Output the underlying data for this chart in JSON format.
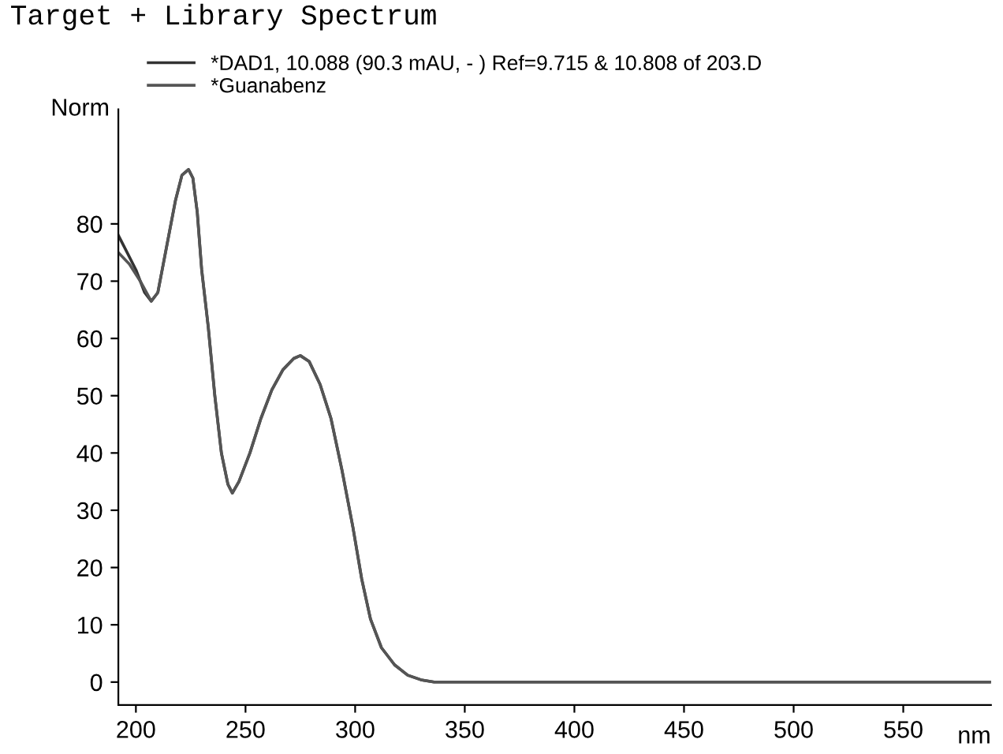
{
  "chart_data": {
    "type": "line",
    "title": "Target + Library Spectrum",
    "xlabel": "nm",
    "ylabel": "Norm",
    "xlim": [
      192,
      590
    ],
    "ylim": [
      -4,
      100
    ],
    "xticks": [
      200,
      250,
      300,
      350,
      400,
      450,
      500,
      550
    ],
    "yticks": [
      0,
      10,
      20,
      30,
      40,
      50,
      60,
      70,
      80
    ],
    "grid": false,
    "legend": "top",
    "marker": "none",
    "line_style": "solid",
    "series": [
      {
        "name": "*DAD1, 10.088 (90.3 mAU, - ) Ref=9.715 & 10.808 of 203.D",
        "color": "#333333",
        "x": [
          192,
          196,
          200,
          204,
          207,
          210,
          214,
          218,
          221,
          224,
          226,
          228,
          230,
          233,
          236,
          239,
          242,
          244,
          247,
          252,
          257,
          262,
          267,
          272,
          275,
          279,
          284,
          289,
          294,
          299,
          303,
          307,
          312,
          318,
          324,
          330,
          336,
          400,
          450,
          500,
          550,
          590
        ],
        "values": [
          78,
          75,
          72,
          68,
          66.5,
          68,
          76,
          84,
          88.5,
          89.5,
          88,
          82,
          72,
          62,
          50,
          40,
          34.5,
          33,
          35,
          40,
          46,
          51,
          54.5,
          56.5,
          57,
          56,
          52,
          46,
          37,
          27,
          18,
          11,
          6,
          3,
          1.2,
          0.4,
          0,
          0,
          0,
          0,
          0,
          0
        ]
      },
      {
        "name": "*Guanabenz",
        "color": "#555555",
        "x": [
          192,
          197,
          202,
          207,
          210,
          214,
          218,
          221,
          224,
          226,
          228,
          230,
          233,
          236,
          239,
          242,
          244,
          247,
          252,
          257,
          262,
          267,
          272,
          275,
          279,
          284,
          289,
          294,
          299,
          303,
          307,
          312,
          318,
          324,
          330,
          336,
          400,
          450,
          500,
          550,
          590
        ],
        "values": [
          75,
          73,
          70,
          66.5,
          68,
          76,
          84,
          88.5,
          89.5,
          88,
          82,
          72,
          62,
          50,
          40,
          34.5,
          33,
          35,
          40,
          46,
          51,
          54.5,
          56.5,
          57,
          56,
          52,
          46,
          37,
          27,
          18,
          11,
          6,
          3,
          1.2,
          0.4,
          0,
          0,
          0,
          0,
          0,
          0
        ]
      }
    ]
  }
}
